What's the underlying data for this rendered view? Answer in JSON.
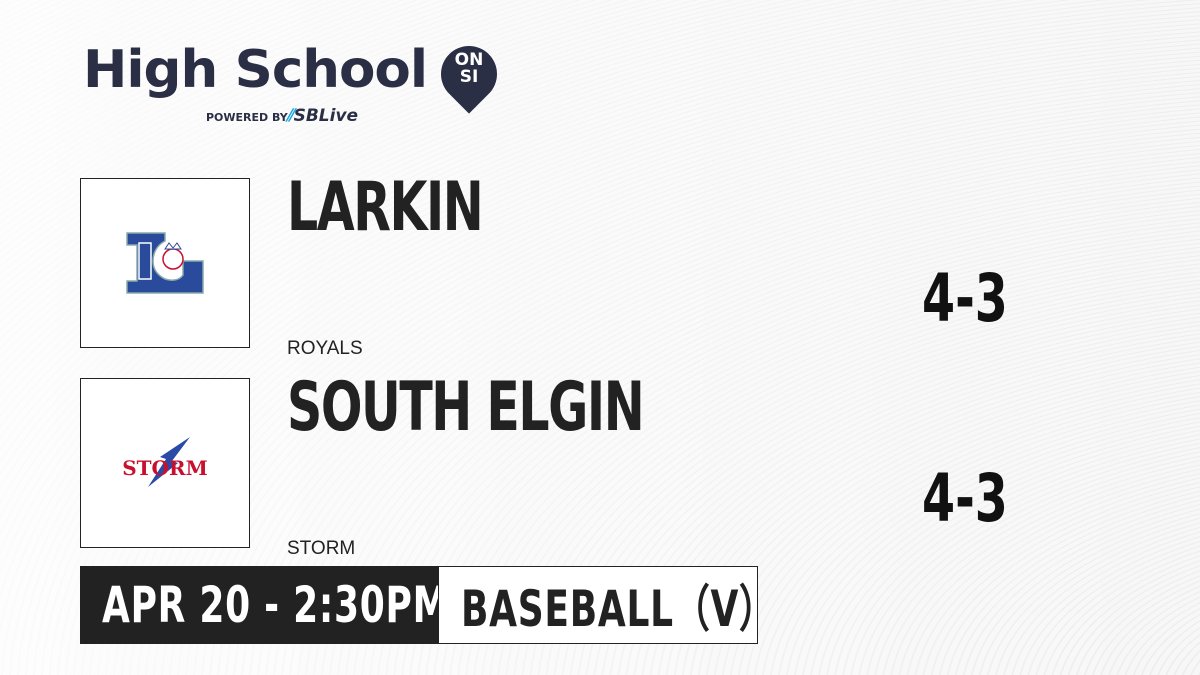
{
  "brand": {
    "title": "High School",
    "badge_line1": "ON",
    "badge_line2": "SI",
    "powered_by": "POWERED BY",
    "partner": "SBLive",
    "colors": {
      "brand": "#2b2f45",
      "partner_accent": "#1fa7e0"
    }
  },
  "teams": [
    {
      "name": "LARKIN",
      "mascot": "ROYALS",
      "score": "4-3",
      "logo_icon": "larkin-royals-logo",
      "logo_colors": [
        "#2a4a9c",
        "#c8102e"
      ]
    },
    {
      "name": "SOUTH ELGIN",
      "mascot": "STORM",
      "score": "4-3",
      "logo_icon": "south-elgin-storm-logo",
      "logo_text": "STORM",
      "logo_colors": [
        "#c8102e",
        "#2a4aa8"
      ]
    }
  ],
  "game": {
    "datetime": "APR 20 - 2:30PM",
    "sport": "BASEBALL（V）"
  }
}
